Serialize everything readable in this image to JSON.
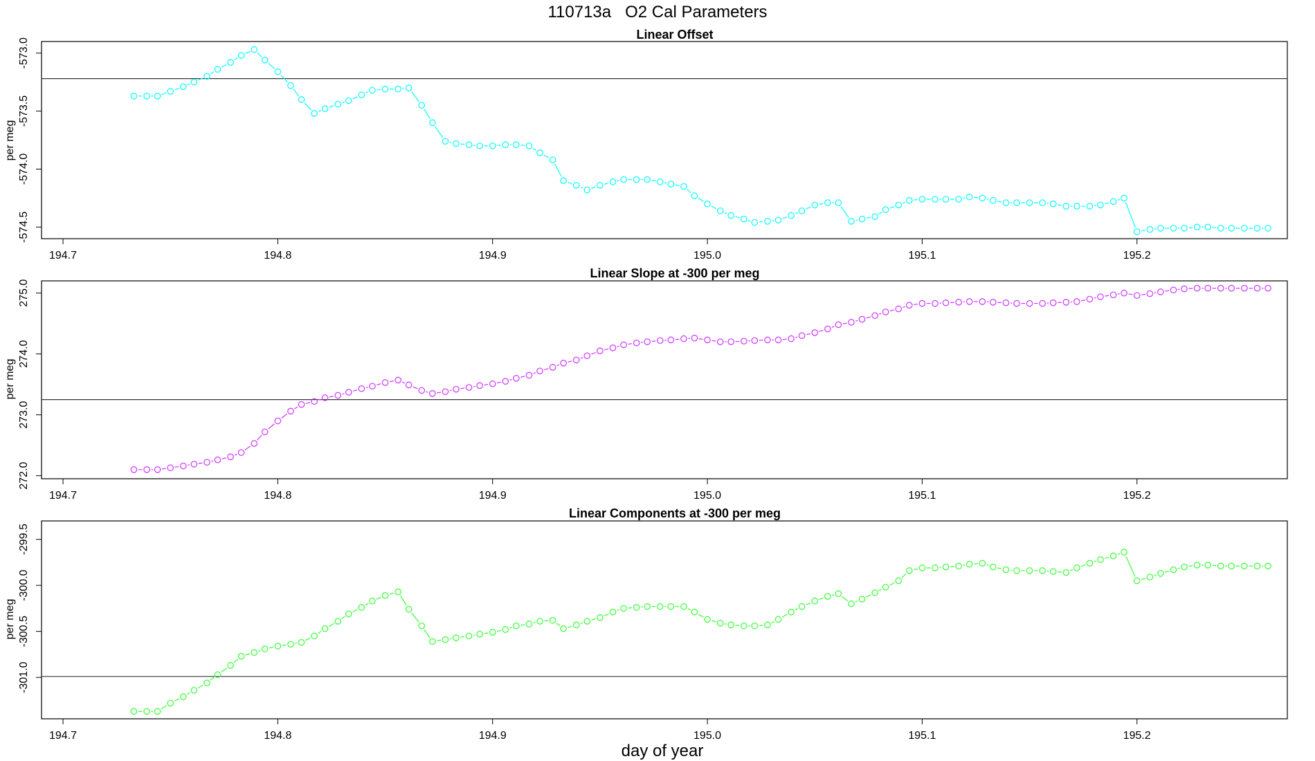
{
  "chart_data": {
    "type": "scatter",
    "title": "110713a   O2 Cal Parameters",
    "xlabel": "day of year",
    "x_ticks": [
      "194.7",
      "194.8",
      "194.9",
      "195.0",
      "195.1",
      "195.2"
    ],
    "x": [
      194.733,
      194.739,
      194.744,
      194.75,
      194.756,
      194.761,
      194.767,
      194.772,
      194.778,
      194.783,
      194.789,
      194.794,
      194.8,
      194.806,
      194.811,
      194.817,
      194.822,
      194.828,
      194.833,
      194.839,
      194.844,
      194.85,
      194.856,
      194.861,
      194.867,
      194.872,
      194.878,
      194.883,
      194.889,
      194.894,
      194.9,
      194.906,
      194.911,
      194.917,
      194.922,
      194.928,
      194.933,
      194.939,
      194.944,
      194.95,
      194.956,
      194.961,
      194.967,
      194.972,
      194.978,
      194.983,
      194.989,
      194.994,
      195.0,
      195.006,
      195.011,
      195.017,
      195.022,
      195.028,
      195.033,
      195.039,
      195.044,
      195.05,
      195.056,
      195.061,
      195.067,
      195.072,
      195.078,
      195.083,
      195.089,
      195.094,
      195.1,
      195.106,
      195.111,
      195.117,
      195.122,
      195.128,
      195.133,
      195.139,
      195.144,
      195.15,
      195.156,
      195.161,
      195.167,
      195.172,
      195.178,
      195.183,
      195.189,
      195.194,
      195.2,
      195.206,
      195.211,
      195.217,
      195.222,
      195.228,
      195.233,
      195.239,
      195.244,
      195.25,
      195.256,
      195.261
    ],
    "xlim": [
      194.69,
      195.27
    ],
    "panels": [
      {
        "title": "Linear Offset",
        "ylabel": "per meg",
        "color": "#00ffff",
        "ylim": [
          -574.6,
          -572.9
        ],
        "yticks": [
          -573.0,
          -573.5,
          -574.0,
          -574.5
        ],
        "ytick_labels": [
          "-573.0",
          "-573.5",
          "-574.0",
          "-574.5"
        ],
        "reference_line": -573.22,
        "values": [
          -573.37,
          -573.37,
          -573.37,
          -573.33,
          -573.29,
          -573.25,
          -573.2,
          -573.14,
          -573.08,
          -573.02,
          -572.97,
          -573.06,
          -573.16,
          -573.28,
          -573.4,
          -573.52,
          -573.48,
          -573.44,
          -573.41,
          -573.36,
          -573.32,
          -573.31,
          -573.31,
          -573.3,
          -573.45,
          -573.6,
          -573.76,
          -573.78,
          -573.79,
          -573.8,
          -573.8,
          -573.79,
          -573.79,
          -573.8,
          -573.86,
          -573.92,
          -574.1,
          -574.14,
          -574.18,
          -574.14,
          -574.11,
          -574.09,
          -574.09,
          -574.09,
          -574.11,
          -574.13,
          -574.15,
          -574.23,
          -574.3,
          -574.36,
          -574.4,
          -574.43,
          -574.46,
          -574.45,
          -574.44,
          -574.4,
          -574.36,
          -574.31,
          -574.29,
          -574.29,
          -574.45,
          -574.43,
          -574.41,
          -574.35,
          -574.31,
          -574.27,
          -574.26,
          -574.26,
          -574.26,
          -574.26,
          -574.24,
          -574.25,
          -574.27,
          -574.29,
          -574.29,
          -574.29,
          -574.29,
          -574.3,
          -574.32,
          -574.32,
          -574.32,
          -574.31,
          -574.28,
          -574.25,
          -574.54,
          -574.52,
          -574.51,
          -574.51,
          -574.51,
          -574.5,
          -574.5,
          -574.51,
          -574.51,
          -574.51,
          -574.51,
          -574.51
        ]
      },
      {
        "title": "Linear Slope at -300 per meg",
        "ylabel": "per meg",
        "color": "#cc33ff",
        "ylim": [
          271.95,
          275.2
        ],
        "yticks": [
          272.0,
          273.0,
          274.0,
          275.0
        ],
        "ytick_labels": [
          "272.0",
          "273.0",
          "274.0",
          "275.0"
        ],
        "reference_line": 273.25,
        "values": [
          272.1,
          272.1,
          272.1,
          272.13,
          272.16,
          272.19,
          272.22,
          272.26,
          272.31,
          272.38,
          272.53,
          272.72,
          272.9,
          273.06,
          273.17,
          273.22,
          273.28,
          273.32,
          273.37,
          273.43,
          273.47,
          273.53,
          273.57,
          273.49,
          273.4,
          273.35,
          273.38,
          273.42,
          273.45,
          273.48,
          273.51,
          273.55,
          273.6,
          273.65,
          273.72,
          273.78,
          273.85,
          273.9,
          273.97,
          274.05,
          274.1,
          274.15,
          274.18,
          274.2,
          274.22,
          274.23,
          274.25,
          274.26,
          274.23,
          274.2,
          274.2,
          274.21,
          274.22,
          274.23,
          274.23,
          274.25,
          274.3,
          274.35,
          274.41,
          274.48,
          274.52,
          274.57,
          274.63,
          274.69,
          274.74,
          274.8,
          274.83,
          274.83,
          274.84,
          274.85,
          274.86,
          274.86,
          274.85,
          274.84,
          274.83,
          274.83,
          274.83,
          274.84,
          274.85,
          274.86,
          274.9,
          274.94,
          274.97,
          275.0,
          274.96,
          274.99,
          275.02,
          275.05,
          275.07,
          275.08,
          275.08,
          275.08,
          275.08,
          275.08,
          275.08,
          275.08
        ]
      },
      {
        "title": "Linear Components at -300 per meg",
        "ylabel": "per meg",
        "color": "#33ff33",
        "ylim": [
          -301.45,
          -299.3
        ],
        "yticks": [
          -299.5,
          -300.0,
          -300.5,
          -301.0
        ],
        "ytick_labels": [
          "-299.5",
          "-300.0",
          "-300.5",
          "-301.0"
        ],
        "reference_line": -300.99,
        "values": [
          -301.37,
          -301.37,
          -301.37,
          -301.28,
          -301.21,
          -301.14,
          -301.06,
          -300.97,
          -300.87,
          -300.77,
          -300.73,
          -300.69,
          -300.66,
          -300.64,
          -300.62,
          -300.55,
          -300.47,
          -300.39,
          -300.31,
          -300.24,
          -300.17,
          -300.11,
          -300.07,
          -300.26,
          -300.44,
          -300.61,
          -300.59,
          -300.57,
          -300.55,
          -300.53,
          -300.51,
          -300.48,
          -300.44,
          -300.42,
          -300.39,
          -300.38,
          -300.47,
          -300.43,
          -300.39,
          -300.35,
          -300.29,
          -300.25,
          -300.24,
          -300.23,
          -300.23,
          -300.23,
          -300.23,
          -300.29,
          -300.37,
          -300.41,
          -300.43,
          -300.44,
          -300.44,
          -300.43,
          -300.37,
          -300.29,
          -300.23,
          -300.17,
          -300.12,
          -300.09,
          -300.2,
          -300.15,
          -300.08,
          -300.02,
          -299.95,
          -299.84,
          -299.81,
          -299.81,
          -299.8,
          -299.79,
          -299.77,
          -299.76,
          -299.8,
          -299.83,
          -299.84,
          -299.84,
          -299.84,
          -299.85,
          -299.86,
          -299.81,
          -299.76,
          -299.72,
          -299.68,
          -299.64,
          -299.95,
          -299.91,
          -299.87,
          -299.83,
          -299.8,
          -299.78,
          -299.78,
          -299.79,
          -299.79,
          -299.79,
          -299.79,
          -299.79
        ]
      }
    ]
  }
}
